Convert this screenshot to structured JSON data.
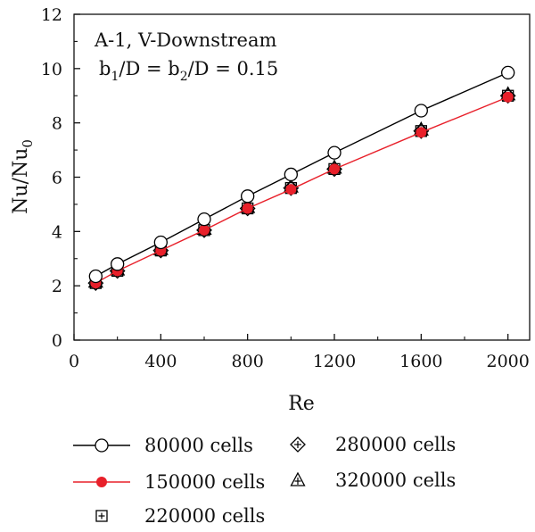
{
  "chart_data": {
    "type": "line",
    "xlabel": "Re",
    "ylabel": {
      "main": "Nu/Nu",
      "sub": "0"
    },
    "xlim": [
      0,
      2100
    ],
    "ylim": [
      0,
      12
    ],
    "xticks": [
      0,
      400,
      800,
      1200,
      1600,
      2000
    ],
    "yticks": [
      0,
      2,
      4,
      6,
      8,
      10,
      12
    ],
    "grid": false,
    "annotations": {
      "line1": "A-1, V-Downstream",
      "line2_a": "b",
      "line2_sub1": "1",
      "line2_b": "/D = b",
      "line2_sub2": "2",
      "line2_c": "/D = 0.15"
    },
    "legend_position": "below",
    "series": [
      {
        "name": "80000 cells",
        "marker": "open-circle",
        "color": "#000000",
        "line": true,
        "x": [
          100,
          200,
          400,
          600,
          800,
          1000,
          1200,
          1600,
          2000
        ],
        "y": [
          2.35,
          2.8,
          3.6,
          4.45,
          5.3,
          6.1,
          6.9,
          8.45,
          9.85
        ]
      },
      {
        "name": "150000 cells",
        "marker": "filled-circle",
        "color": "#e8202a",
        "line": true,
        "x": [
          100,
          200,
          400,
          600,
          800,
          1000,
          1200,
          1600,
          2000
        ],
        "y": [
          2.1,
          2.55,
          3.3,
          4.05,
          4.85,
          5.55,
          6.3,
          7.65,
          8.95
        ]
      },
      {
        "name": "220000 cells",
        "marker": "square-plus",
        "color": "#000000",
        "line": false,
        "x": [
          100,
          200,
          400,
          600,
          800,
          1000,
          1200,
          1600,
          2000
        ],
        "y": [
          2.1,
          2.55,
          3.3,
          4.05,
          4.85,
          5.6,
          6.3,
          7.7,
          9.0
        ]
      },
      {
        "name": "280000 cells",
        "marker": "diamond-plus",
        "color": "#000000",
        "line": false,
        "x": [
          100,
          200,
          400,
          600,
          800,
          1000,
          1200,
          1600,
          2000
        ],
        "y": [
          2.1,
          2.55,
          3.3,
          4.05,
          4.85,
          5.6,
          6.3,
          7.7,
          9.0
        ]
      },
      {
        "name": "320000 cells",
        "marker": "triangle-plus",
        "color": "#000000",
        "line": false,
        "x": [
          100,
          200,
          400,
          600,
          800,
          1000,
          1200,
          1600,
          2000
        ],
        "y": [
          2.15,
          2.6,
          3.35,
          4.1,
          4.9,
          5.65,
          6.35,
          7.75,
          9.05
        ]
      }
    ]
  }
}
